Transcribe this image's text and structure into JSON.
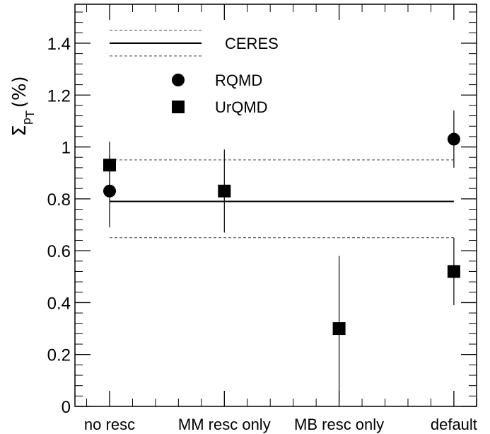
{
  "chart_data": {
    "type": "scatter",
    "title": "",
    "ylabel": {
      "symbol": "Σ",
      "sub": "p",
      "subsub": "T",
      "unit": "(%)"
    },
    "xlabel": "",
    "categories": [
      "no resc",
      "MM resc only",
      "MB resc only",
      "default"
    ],
    "ylim": [
      0,
      1.55
    ],
    "yticks": [
      {
        "value": 0,
        "label": "0"
      },
      {
        "value": 0.2,
        "label": "0.2"
      },
      {
        "value": 0.4,
        "label": "0.4"
      },
      {
        "value": 0.6,
        "label": "0.6"
      },
      {
        "value": 0.8,
        "label": "0.8"
      },
      {
        "value": 1.0,
        "label": "1"
      },
      {
        "value": 1.2,
        "label": "1.2"
      },
      {
        "value": 1.4,
        "label": "1.4"
      }
    ],
    "reference": {
      "name": "CERES",
      "value": 0.79,
      "band": [
        0.65,
        0.95
      ]
    },
    "series": [
      {
        "name": "RQMD",
        "marker": "circle",
        "points": [
          {
            "x": 0,
            "y": 0.83,
            "err": 0.14
          },
          {
            "x": 3,
            "y": 1.03,
            "err": 0.11
          }
        ]
      },
      {
        "name": "UrQMD",
        "marker": "square",
        "points": [
          {
            "x": 0,
            "y": 0.93,
            "err": 0.09
          },
          {
            "x": 1,
            "y": 0.83,
            "err": 0.16
          },
          {
            "x": 2,
            "y": 0.3,
            "err": 0.28
          },
          {
            "x": 3,
            "y": 0.52,
            "err": 0.13
          }
        ]
      }
    ],
    "legend_placement": "top-left",
    "grid": false
  }
}
